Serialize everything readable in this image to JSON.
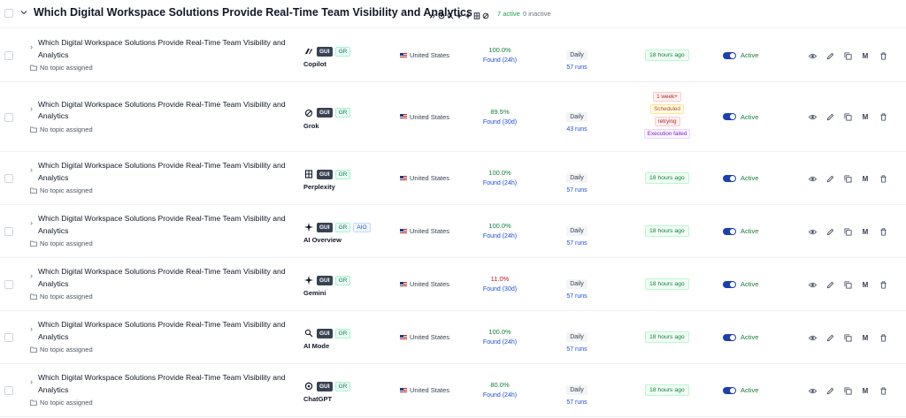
{
  "group": {
    "title": "Which Digital Workspace Solutions Provide Real-Time Team Visibility and Analytics",
    "active_count": "7 active",
    "inactive_count": "0 inactive",
    "engine_icons": [
      "copilot-icon",
      "chatgpt-icon",
      "ai-mode-icon",
      "sparkle-icon",
      "sparkle-icon",
      "perplexity-icon",
      "grok-icon"
    ]
  },
  "rows": [
    {
      "title": "Which Digital Workspace Solutions Provide Real-Time Team Visibility and Analytics",
      "topic": "No topic assigned",
      "engine": "Copilot",
      "engine_icon": "copilot-icon",
      "tags": [
        "GUI",
        "GR"
      ],
      "region": "United States",
      "found_pct": "100.0%",
      "found_label": "Found (24h)",
      "frequency": "Daily",
      "runs": "57 runs",
      "last_run": "18 hours ago",
      "status": "Active"
    },
    {
      "title": "Which Digital Workspace Solutions Provide Real-Time Team Visibility and Analytics",
      "topic": "No topic assigned",
      "engine": "Grok",
      "engine_icon": "grok-icon",
      "tags": [
        "GUI",
        "GR"
      ],
      "region": "United States",
      "found_pct": "89.5%",
      "found_label": "Found (30d)",
      "frequency": "Daily",
      "runs": "43 runs",
      "last_run_stack": [
        "1 week+",
        "Scheduled",
        "retrying",
        "Execution failed"
      ],
      "status": "Active"
    },
    {
      "title": "Which Digital Workspace Solutions Provide Real-Time Team Visibility and Analytics",
      "topic": "No topic assigned",
      "engine": "Perplexity",
      "engine_icon": "perplexity-icon",
      "tags": [
        "GUI",
        "GR"
      ],
      "region": "United States",
      "found_pct": "100.0%",
      "found_label": "Found (24h)",
      "frequency": "Daily",
      "runs": "57 runs",
      "last_run": "18 hours ago",
      "status": "Active"
    },
    {
      "title": "Which Digital Workspace Solutions Provide Real-Time Team Visibility and Analytics",
      "topic": "No topic assigned",
      "engine": "AI Overview",
      "engine_icon": "sparkle-icon",
      "tags": [
        "GUI",
        "GR",
        "AIO"
      ],
      "region": "United States",
      "found_pct": "100.0%",
      "found_label": "Found (24h)",
      "frequency": "Daily",
      "runs": "57 runs",
      "last_run": "18 hours ago",
      "status": "Active"
    },
    {
      "title": "Which Digital Workspace Solutions Provide Real-Time Team Visibility and Analytics",
      "topic": "No topic assigned",
      "engine": "Gemini",
      "engine_icon": "sparkle-icon",
      "tags": [
        "GUI",
        "GR"
      ],
      "region": "United States",
      "found_pct": "11.0%",
      "found_label": "Found (30d)",
      "frequency": "Daily",
      "runs": "57 runs",
      "last_run": "18 hours ago",
      "status": "Active"
    },
    {
      "title": "Which Digital Workspace Solutions Provide Real-Time Team Visibility and Analytics",
      "topic": "No topic assigned",
      "engine": "AI Mode",
      "engine_icon": "ai-mode-icon",
      "tags": [
        "GUI",
        "GR"
      ],
      "region": "United States",
      "found_pct": "100.0%",
      "found_label": "Found (24h)",
      "frequency": "Daily",
      "runs": "57 runs",
      "last_run": "18 hours ago",
      "status": "Active"
    },
    {
      "title": "Which Digital Workspace Solutions Provide Real-Time Team Visibility and Analytics",
      "topic": "No topic assigned",
      "engine": "ChatGPT",
      "engine_icon": "chatgpt-icon",
      "tags": [
        "GUI",
        "GR"
      ],
      "region": "United States",
      "found_pct": "80.0%",
      "found_label": "Found (24h)",
      "frequency": "Daily",
      "runs": "57 runs",
      "last_run": "18 hours ago",
      "status": "Active"
    }
  ],
  "actions": {
    "view_icon": "eye-icon",
    "edit_icon": "pencil-icon",
    "copy_icon": "copy-icon",
    "m_label": "M",
    "delete_icon": "trash-icon"
  },
  "colors": {
    "found_good": "#15803d",
    "found_low": "#b91c1c",
    "toggle_on": "#1e40af"
  }
}
